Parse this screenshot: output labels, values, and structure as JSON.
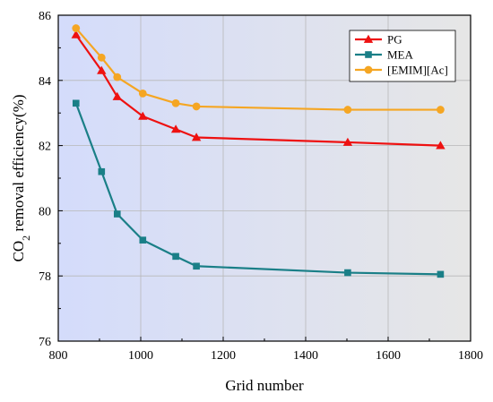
{
  "chart_data": {
    "type": "line",
    "title": "",
    "xlabel": "Grid number",
    "ylabel_prefix": "CO",
    "ylabel_subscript": "2",
    "ylabel_suffix": " removal efficiency(%)",
    "xlim": [
      800,
      1800
    ],
    "ylim": [
      76,
      86
    ],
    "xticks": [
      800,
      1000,
      1200,
      1400,
      1600,
      1800
    ],
    "yticks": [
      76,
      78,
      80,
      82,
      84,
      86
    ],
    "grid": true,
    "legend_position": "top-right",
    "background_gradient": [
      "#d4dcfb",
      "#e6e6e6"
    ],
    "series": [
      {
        "name": "PG",
        "color": "#ee1111",
        "marker": "triangle",
        "x": [
          843,
          905,
          943,
          1005,
          1085,
          1135,
          1502,
          1727
        ],
        "y": [
          85.4,
          84.3,
          83.5,
          82.9,
          82.5,
          82.25,
          82.1,
          82.0
        ]
      },
      {
        "name": "MEA",
        "color": "#1a7f87",
        "marker": "square",
        "x": [
          843,
          905,
          943,
          1005,
          1085,
          1135,
          1502,
          1727
        ],
        "y": [
          83.3,
          81.2,
          79.9,
          79.1,
          78.6,
          78.3,
          78.1,
          78.05
        ]
      },
      {
        "name": "[EMIM][Ac]",
        "color": "#f5a623",
        "marker": "circle",
        "x": [
          843,
          905,
          943,
          1005,
          1085,
          1135,
          1502,
          1727
        ],
        "y": [
          85.6,
          84.7,
          84.1,
          83.6,
          83.3,
          83.2,
          83.1,
          83.1
        ]
      }
    ]
  }
}
